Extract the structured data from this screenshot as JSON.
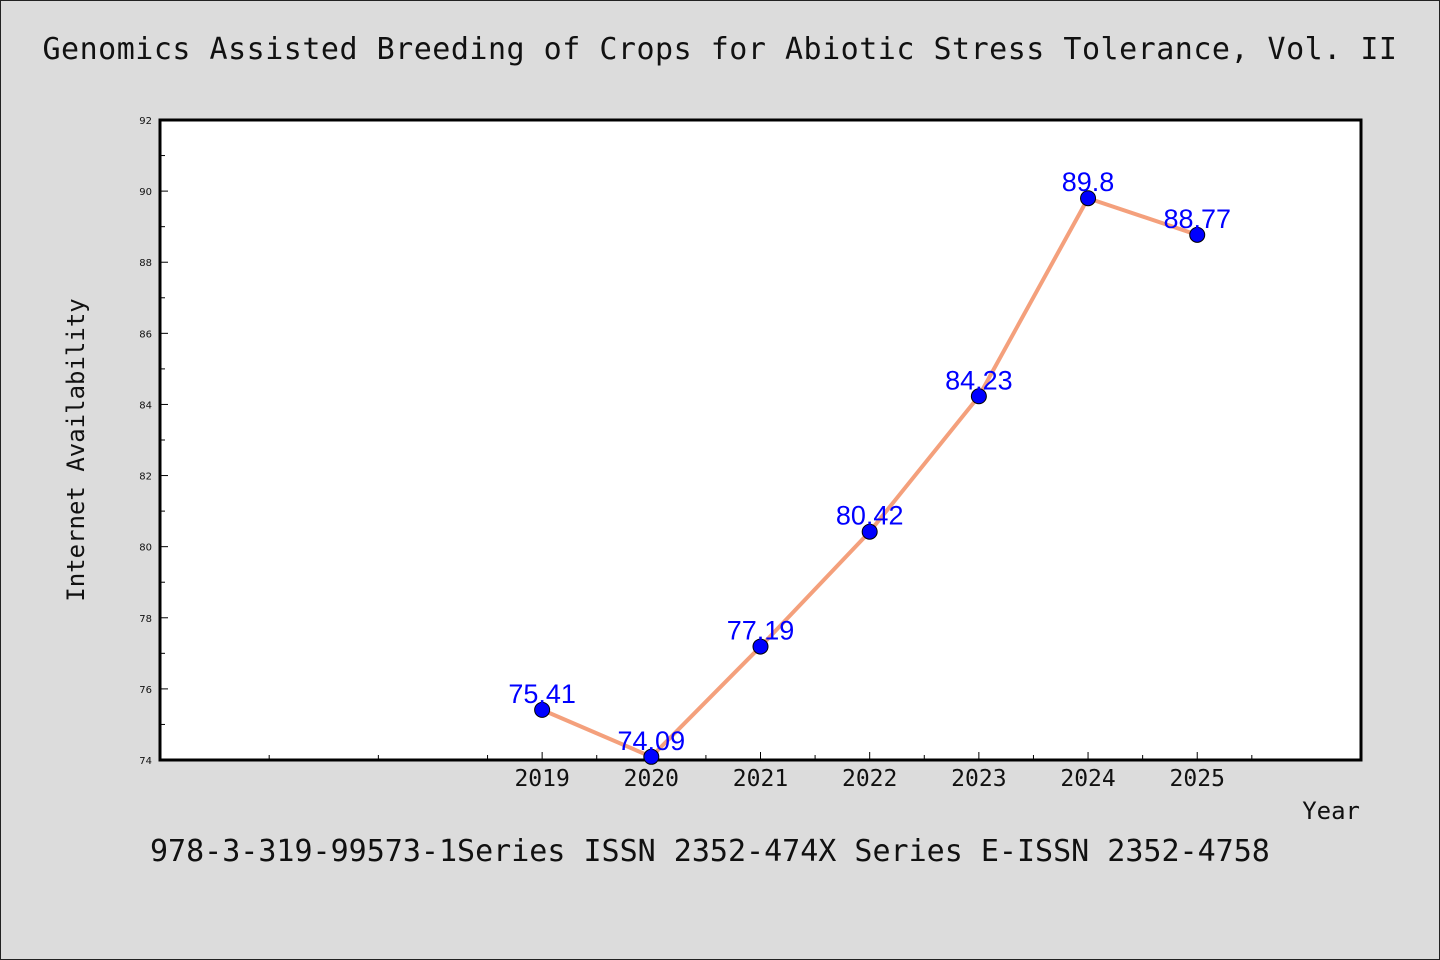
{
  "title": "Genomics Assisted Breeding of Crops for Abiotic Stress Tolerance, Vol. II",
  "footer": "978-3-319-99573-1Series ISSN 2352-474X Series E-ISSN 2352-4758",
  "chart_data": {
    "type": "line",
    "title": "Genomics Assisted Breeding of Crops for Abiotic Stress Tolerance, Vol. II",
    "xlabel": "Year",
    "ylabel": "Internet Availability",
    "x": [
      "2019",
      "2020",
      "2021",
      "2022",
      "2023",
      "2024",
      "2025"
    ],
    "series": [
      {
        "values": [
          75.41,
          74.09,
          77.19,
          80.42,
          84.23,
          89.8,
          88.77
        ]
      }
    ],
    "data_labels": [
      "75.41",
      "74.09",
      "77.19",
      "80.42",
      "84.23",
      "89.8",
      "88.77"
    ],
    "ylim": [
      74,
      92
    ],
    "yticks": [
      74,
      76,
      78,
      80,
      82,
      84,
      86,
      88,
      90,
      92
    ],
    "xlim": [
      2015.5,
      2026.5
    ],
    "grid": false,
    "colors": {
      "line": "#f4a07c",
      "marker": "#0000ff",
      "label": "#0000ff"
    }
  }
}
